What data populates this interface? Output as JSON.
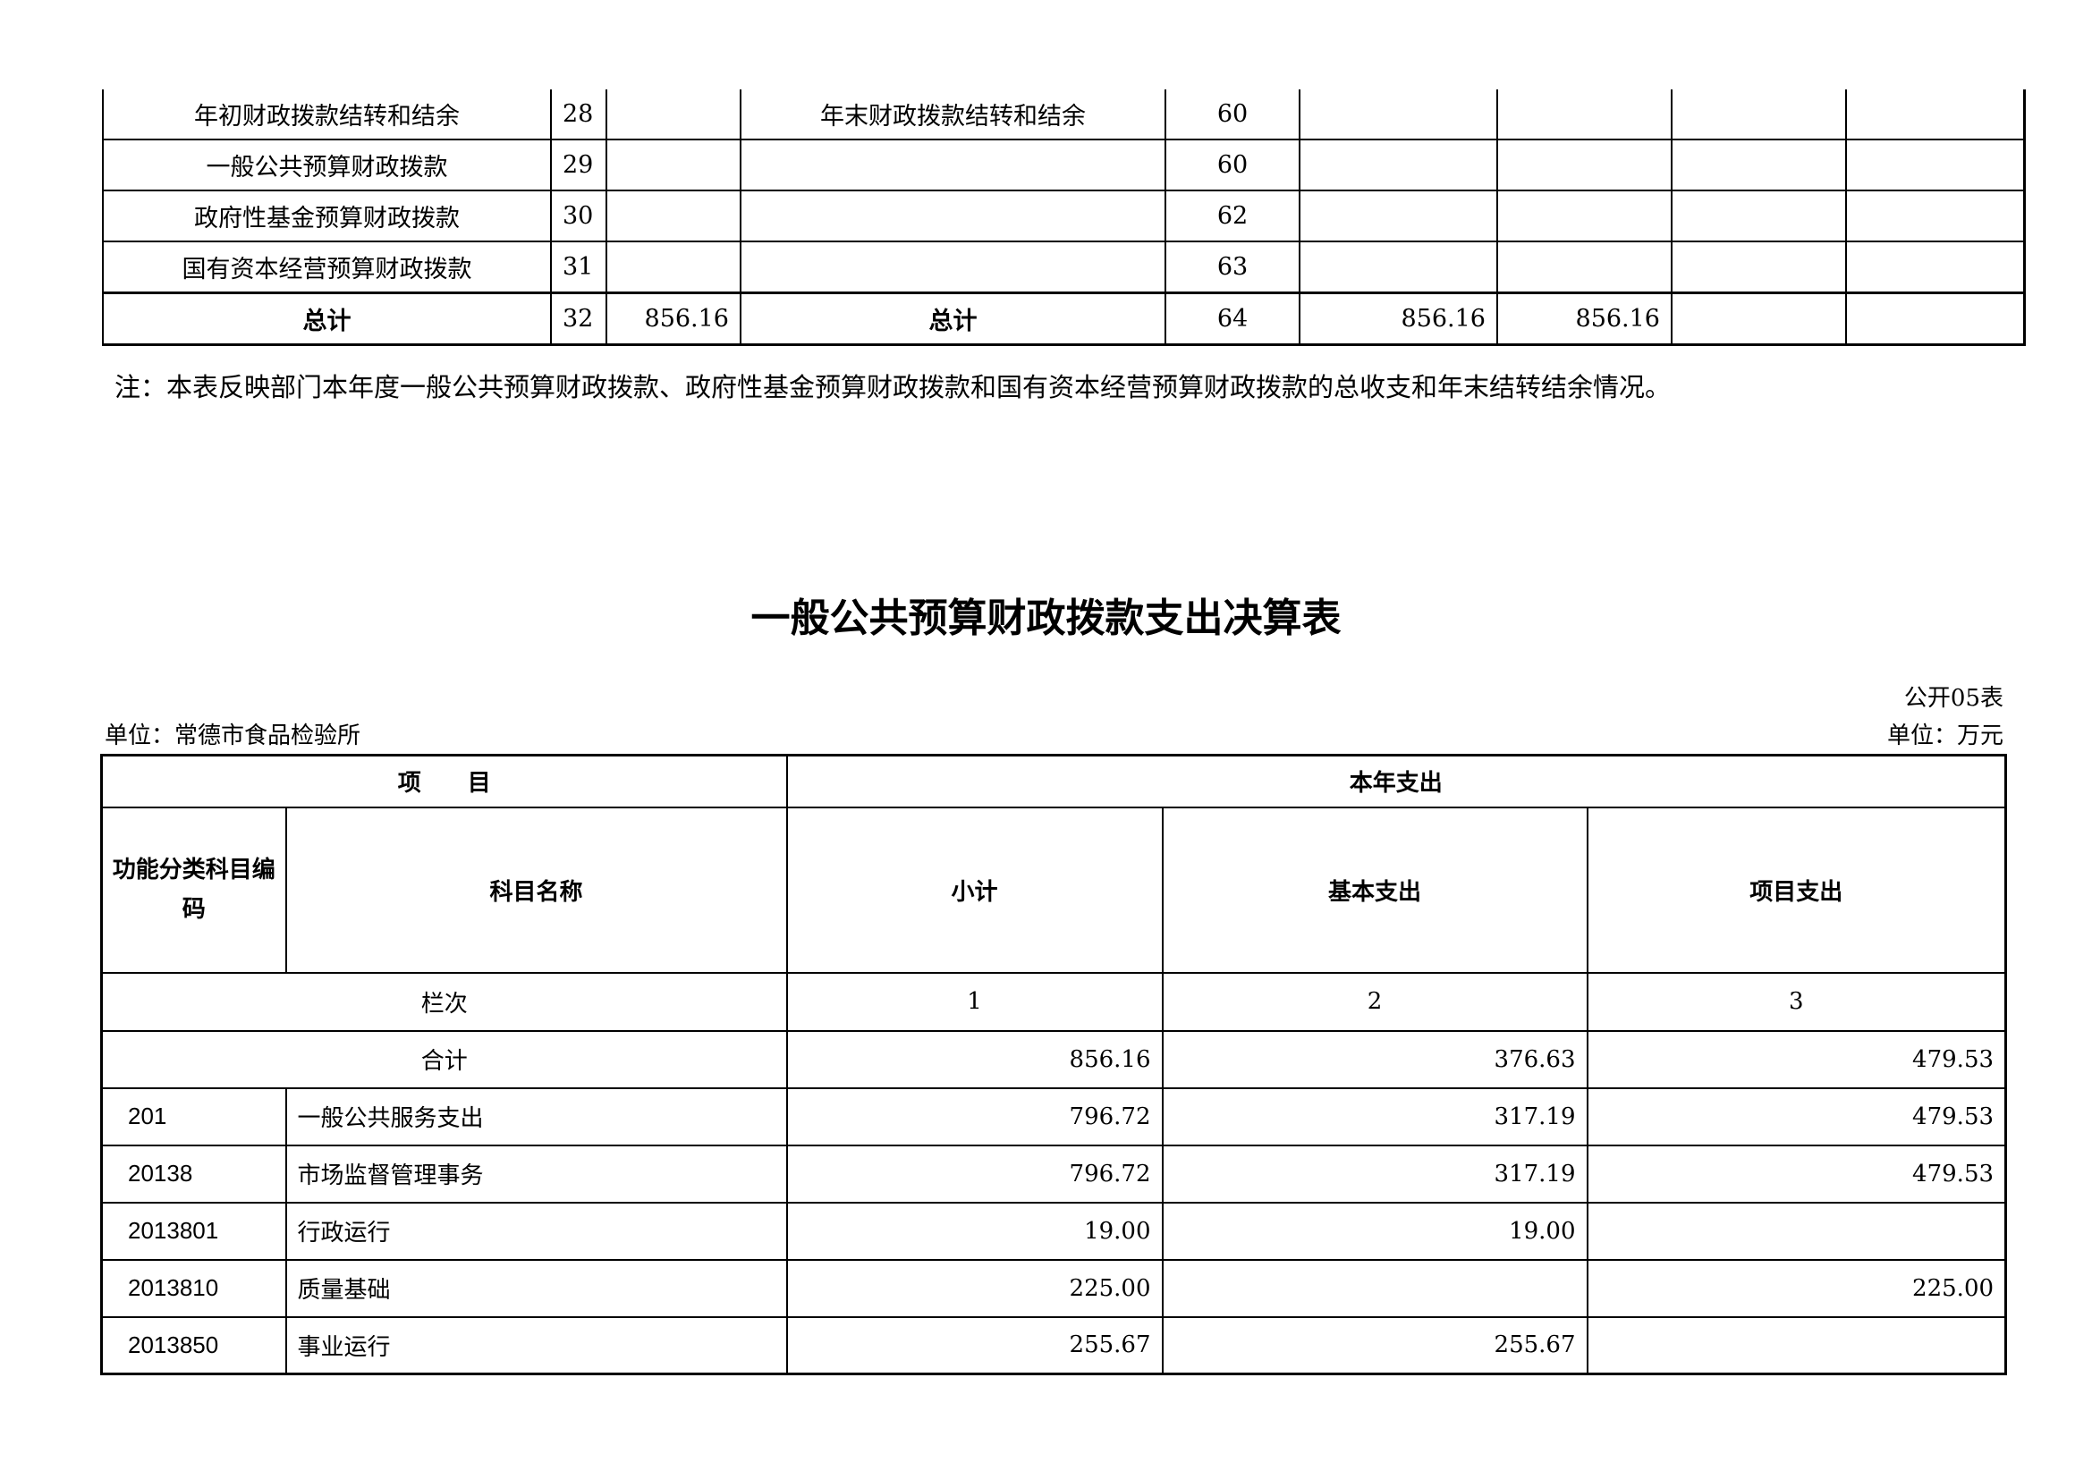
{
  "top_table": {
    "rows": [
      {
        "left_label": "年初财政拨款结转和结余",
        "left_no": "28",
        "left_val": "",
        "right_label": "年末财政拨款结转和结余",
        "right_no": "60",
        "v1": "",
        "v2": "",
        "v3": "",
        "v4": ""
      },
      {
        "left_label": "一般公共预算财政拨款",
        "left_no": "29",
        "left_val": "",
        "right_label": "",
        "right_no": "60",
        "v1": "",
        "v2": "",
        "v3": "",
        "v4": ""
      },
      {
        "left_label": "政府性基金预算财政拨款",
        "left_no": "30",
        "left_val": "",
        "right_label": "",
        "right_no": "62",
        "v1": "",
        "v2": "",
        "v3": "",
        "v4": ""
      },
      {
        "left_label": "国有资本经营预算财政拨款",
        "left_no": "31",
        "left_val": "",
        "right_label": "",
        "right_no": "63",
        "v1": "",
        "v2": "",
        "v3": "",
        "v4": ""
      }
    ],
    "total": {
      "left_label": "总计",
      "left_no": "32",
      "left_val": "856.16",
      "right_label": "总计",
      "right_no": "64",
      "v1": "856.16",
      "v2": "856.16",
      "v3": "",
      "v4": ""
    }
  },
  "note": "注：本表反映部门本年度一般公共预算财政拨款、政府性基金预算财政拨款和国有资本经营预算财政拨款的总收支和年末结转结余情况。",
  "title": "一般公共预算财政拨款支出决算表",
  "table_no": "公开05表",
  "unit_org": "单位：常德市食品检验所",
  "unit_money": "单位：万元",
  "bottom_table": {
    "header_item": "项　　目",
    "header_year": "本年支出",
    "col_code": "功能分类科目编码",
    "col_name": "科目名称",
    "col_subtotal": "小计",
    "col_basic": "基本支出",
    "col_project": "项目支出",
    "col_index_label": "栏次",
    "col_index": [
      "1",
      "2",
      "3"
    ],
    "total": {
      "label": "合计",
      "subtotal": "856.16",
      "basic": "376.63",
      "project": "479.53"
    },
    "rows": [
      {
        "code": "201",
        "name": "一般公共服务支出",
        "subtotal": "796.72",
        "basic": "317.19",
        "project": "479.53"
      },
      {
        "code": "20138",
        "name": "市场监督管理事务",
        "subtotal": "796.72",
        "basic": "317.19",
        "project": "479.53"
      },
      {
        "code": "2013801",
        "name": "行政运行",
        "subtotal": "19.00",
        "basic": "19.00",
        "project": ""
      },
      {
        "code": "2013810",
        "name": "质量基础",
        "subtotal": "225.00",
        "basic": "",
        "project": "225.00"
      },
      {
        "code": "2013850",
        "name": "事业运行",
        "subtotal": "255.67",
        "basic": "255.67",
        "project": ""
      }
    ]
  }
}
